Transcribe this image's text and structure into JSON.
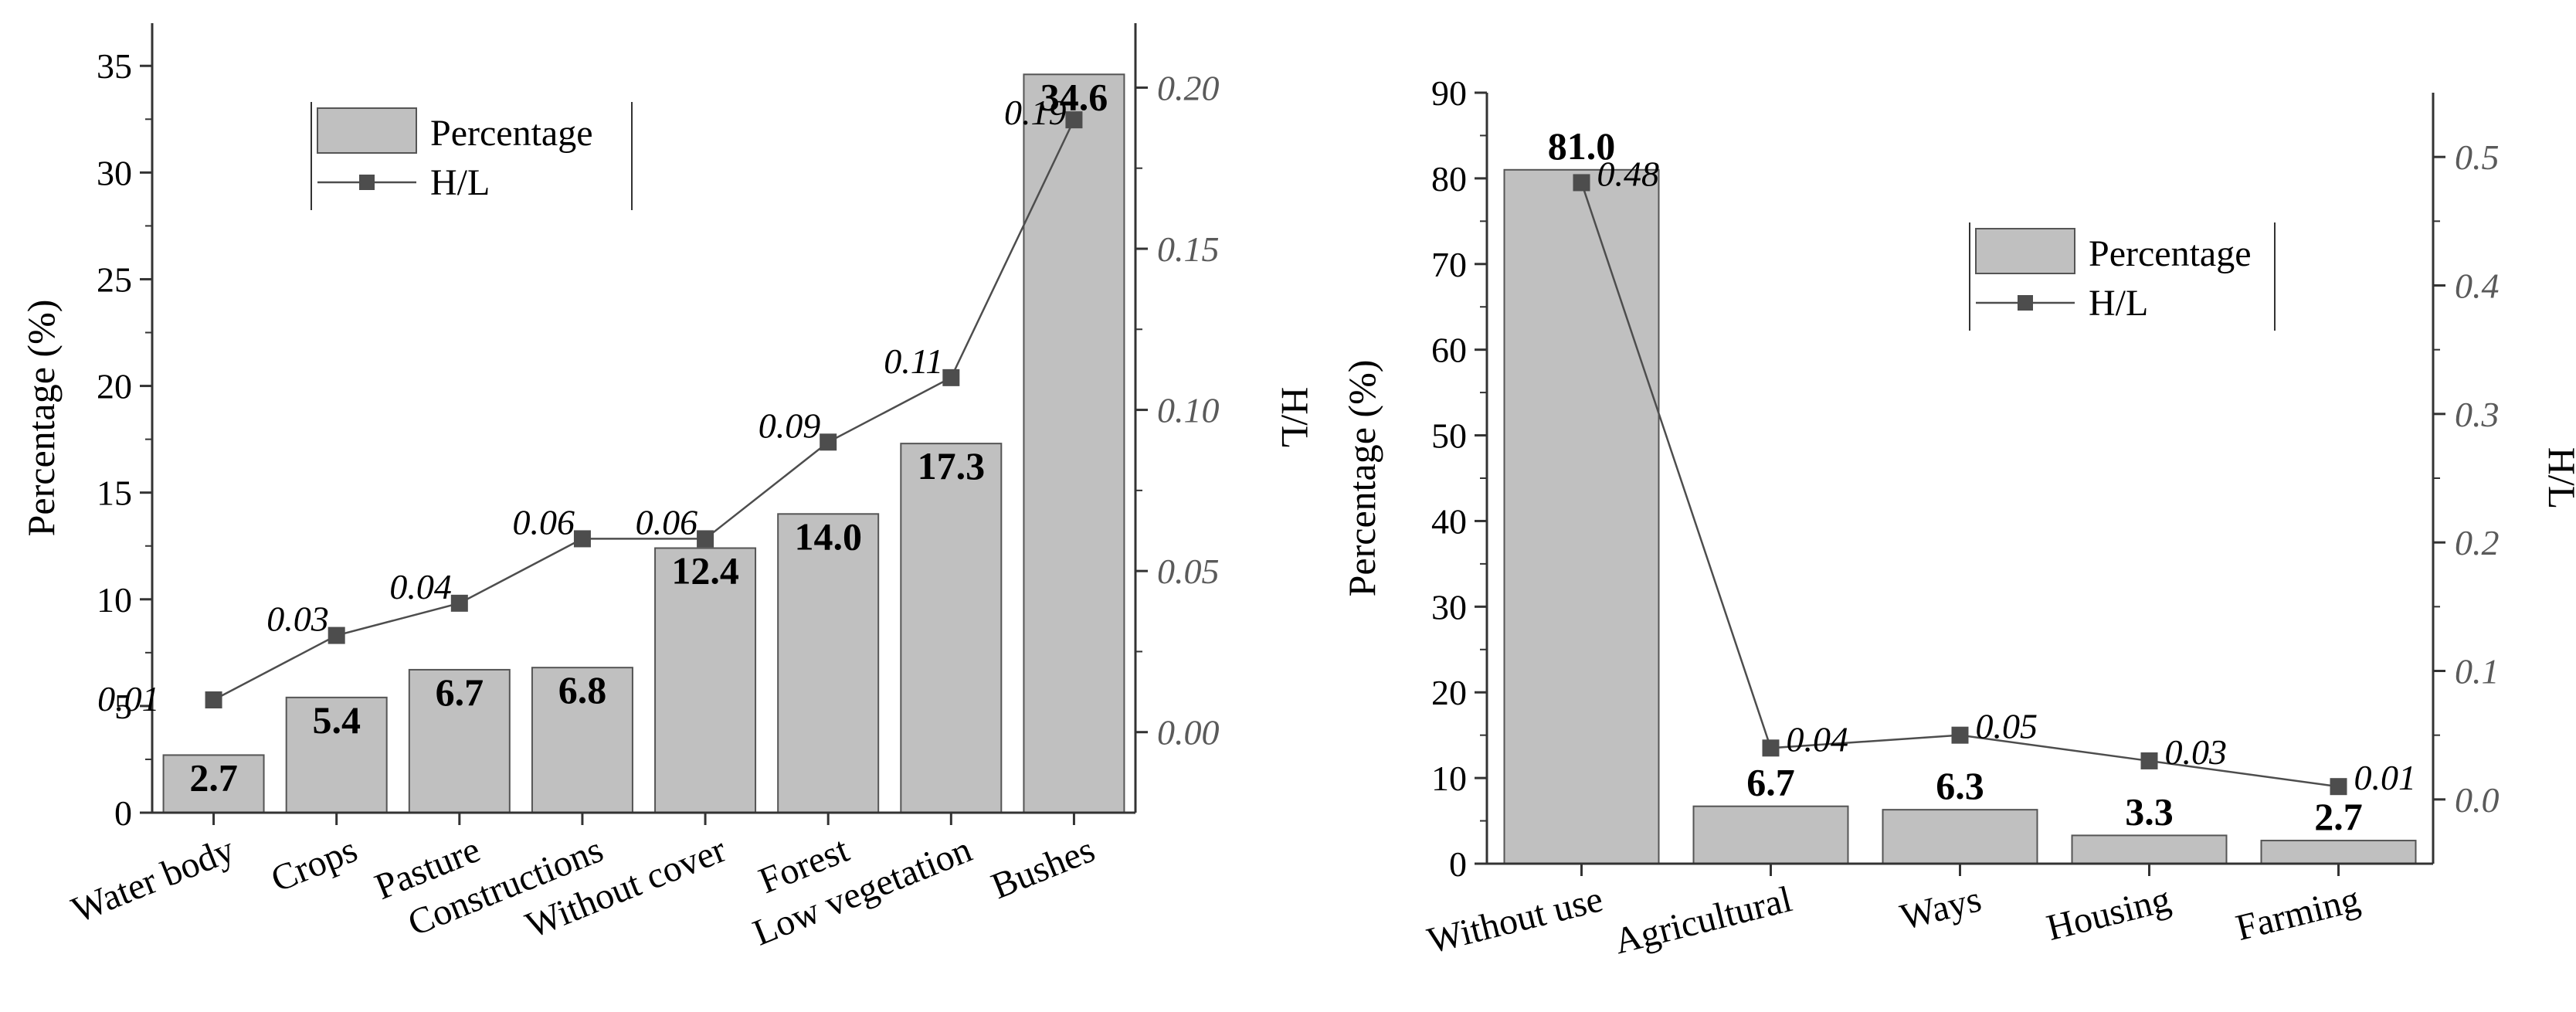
{
  "chart_data": [
    {
      "type": "bar",
      "categories": [
        "Water body",
        "Crops",
        "Pasture",
        "Constructions",
        "Without cover",
        "Forest",
        "Low vegetation",
        "Bushes"
      ],
      "series": [
        {
          "name": "Percentage",
          "type": "bar",
          "axis": "left",
          "values": [
            2.7,
            5.4,
            6.7,
            6.8,
            12.4,
            14.0,
            17.3,
            34.6
          ],
          "labels": [
            "2.7",
            "5.4",
            "6.7",
            "6.8",
            "12.4",
            "14.0",
            "17.3",
            "34.6"
          ],
          "color": "#c0c0c0"
        },
        {
          "name": "H/L",
          "type": "line",
          "axis": "right",
          "values": [
            0.01,
            0.03,
            0.04,
            0.06,
            0.06,
            0.09,
            0.11,
            0.19
          ],
          "labels": [
            "0.01",
            "0.03",
            "0.04",
            "0.06",
            "0.06",
            "0.09",
            "0.11",
            "0.19"
          ],
          "color": "#4d4d4d"
        }
      ],
      "ylabel": "Percentage (%)",
      "y2label": "H/L",
      "ylim": [
        0,
        37
      ],
      "yticks": [
        "0",
        "5",
        "10",
        "15",
        "20",
        "25",
        "30",
        "35"
      ],
      "y2lim": [
        -0.025,
        0.22
      ],
      "y2ticks": [
        "0.00",
        "0.05",
        "0.10",
        "0.15",
        "0.20"
      ],
      "legend": "top-left",
      "grid": false
    },
    {
      "type": "bar",
      "categories": [
        "Without use",
        "Agricultural",
        "Ways",
        "Housing",
        "Farming"
      ],
      "series": [
        {
          "name": "Percentage",
          "type": "bar",
          "axis": "left",
          "values": [
            81.0,
            6.7,
            6.3,
            3.3,
            2.7
          ],
          "labels": [
            "81.0",
            "6.7",
            "6.3",
            "3.3",
            "2.7"
          ],
          "color": "#c0c0c0"
        },
        {
          "name": "H/L",
          "type": "line",
          "axis": "right",
          "values": [
            0.48,
            0.04,
            0.05,
            0.03,
            0.01
          ],
          "labels": [
            "0.48",
            "0.04",
            "0.05",
            "0.03",
            "0.01"
          ],
          "color": "#4d4d4d"
        }
      ],
      "ylabel": "Percentage (%)",
      "y2label": "H/L",
      "ylim": [
        0,
        90
      ],
      "yticks": [
        "0",
        "10",
        "20",
        "30",
        "40",
        "50",
        "60",
        "70",
        "80",
        "90"
      ],
      "y2lim": [
        -0.05,
        0.55
      ],
      "y2ticks": [
        "0.0",
        "0.1",
        "0.2",
        "0.3",
        "0.4",
        "0.5"
      ],
      "legend": "top-right",
      "grid": false
    }
  ]
}
